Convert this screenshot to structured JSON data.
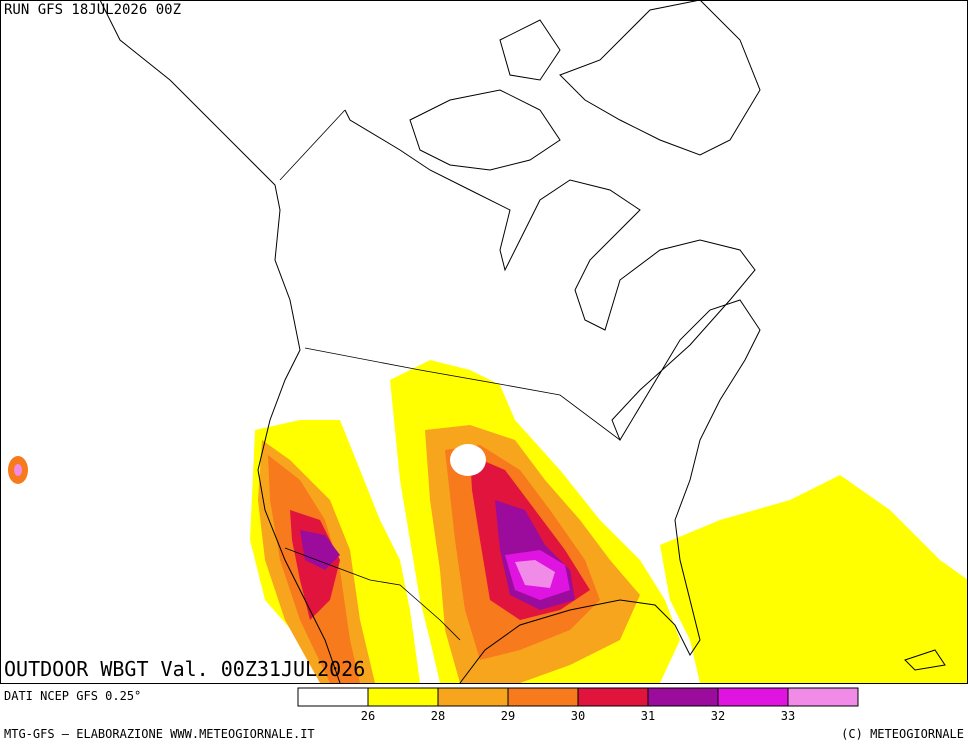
{
  "header": {
    "run": "RUN GFS 18JUL2026 00Z"
  },
  "map": {
    "title": "OUTDOOR WBGT Val. 00Z31JUL2026"
  },
  "legend": {
    "source": "DATI NCEP GFS 0.25°",
    "thresholds": [
      26,
      28,
      29,
      30,
      31,
      32,
      33
    ],
    "colors": [
      "#ffffff",
      "#ffff00",
      "#f8a51e",
      "#f77a1c",
      "#e0143c",
      "#9c0c9c",
      "#e014e0",
      "#f08ce8"
    ]
  },
  "footer": {
    "left": "MTG-GFS — ELABORAZIONE WWW.METEOGIORNALE.IT",
    "right": "(C) METEOGIORNALE"
  }
}
